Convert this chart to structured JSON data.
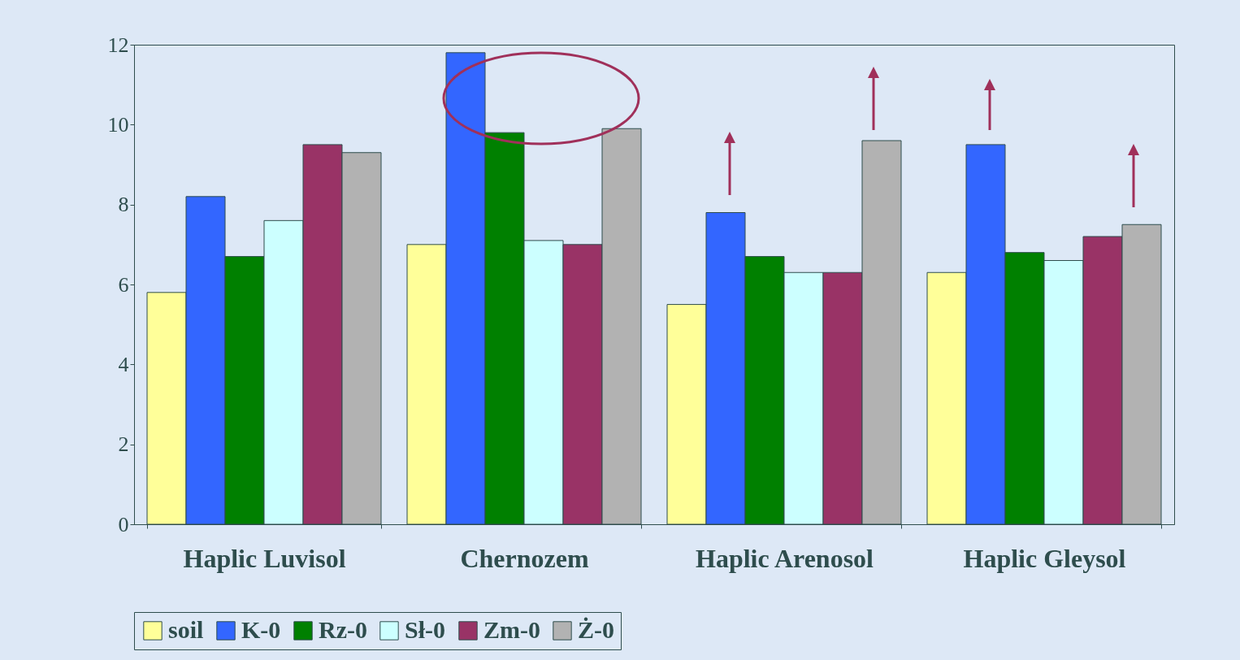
{
  "chart_data": {
    "type": "bar",
    "categories": [
      "Haplic Luvisol",
      "Chernozem",
      "Haplic Arenosol",
      "Haplic Gleysol"
    ],
    "series": [
      {
        "name": "soil",
        "color": "#ffff99",
        "values": [
          5.8,
          7.0,
          5.5,
          6.3
        ]
      },
      {
        "name": "K-0",
        "color": "#3366ff",
        "values": [
          8.2,
          11.8,
          7.8,
          9.5
        ]
      },
      {
        "name": "Rz-0",
        "color": "#008000",
        "values": [
          6.7,
          9.8,
          6.7,
          6.8
        ]
      },
      {
        "name": "Sł-0",
        "color": "#ccffff",
        "values": [
          7.6,
          7.1,
          6.3,
          6.6
        ]
      },
      {
        "name": "Zm-0",
        "color": "#993366",
        "values": [
          9.5,
          7.0,
          6.3,
          7.2
        ]
      },
      {
        "name": "Ż-0",
        "color": "#b2b2b2",
        "values": [
          9.3,
          9.9,
          9.6,
          7.5
        ]
      }
    ],
    "ylim": [
      0,
      12
    ],
    "yticks": [
      0,
      2,
      4,
      6,
      8,
      10,
      12
    ],
    "grid": false,
    "legend": "bottom"
  }
}
